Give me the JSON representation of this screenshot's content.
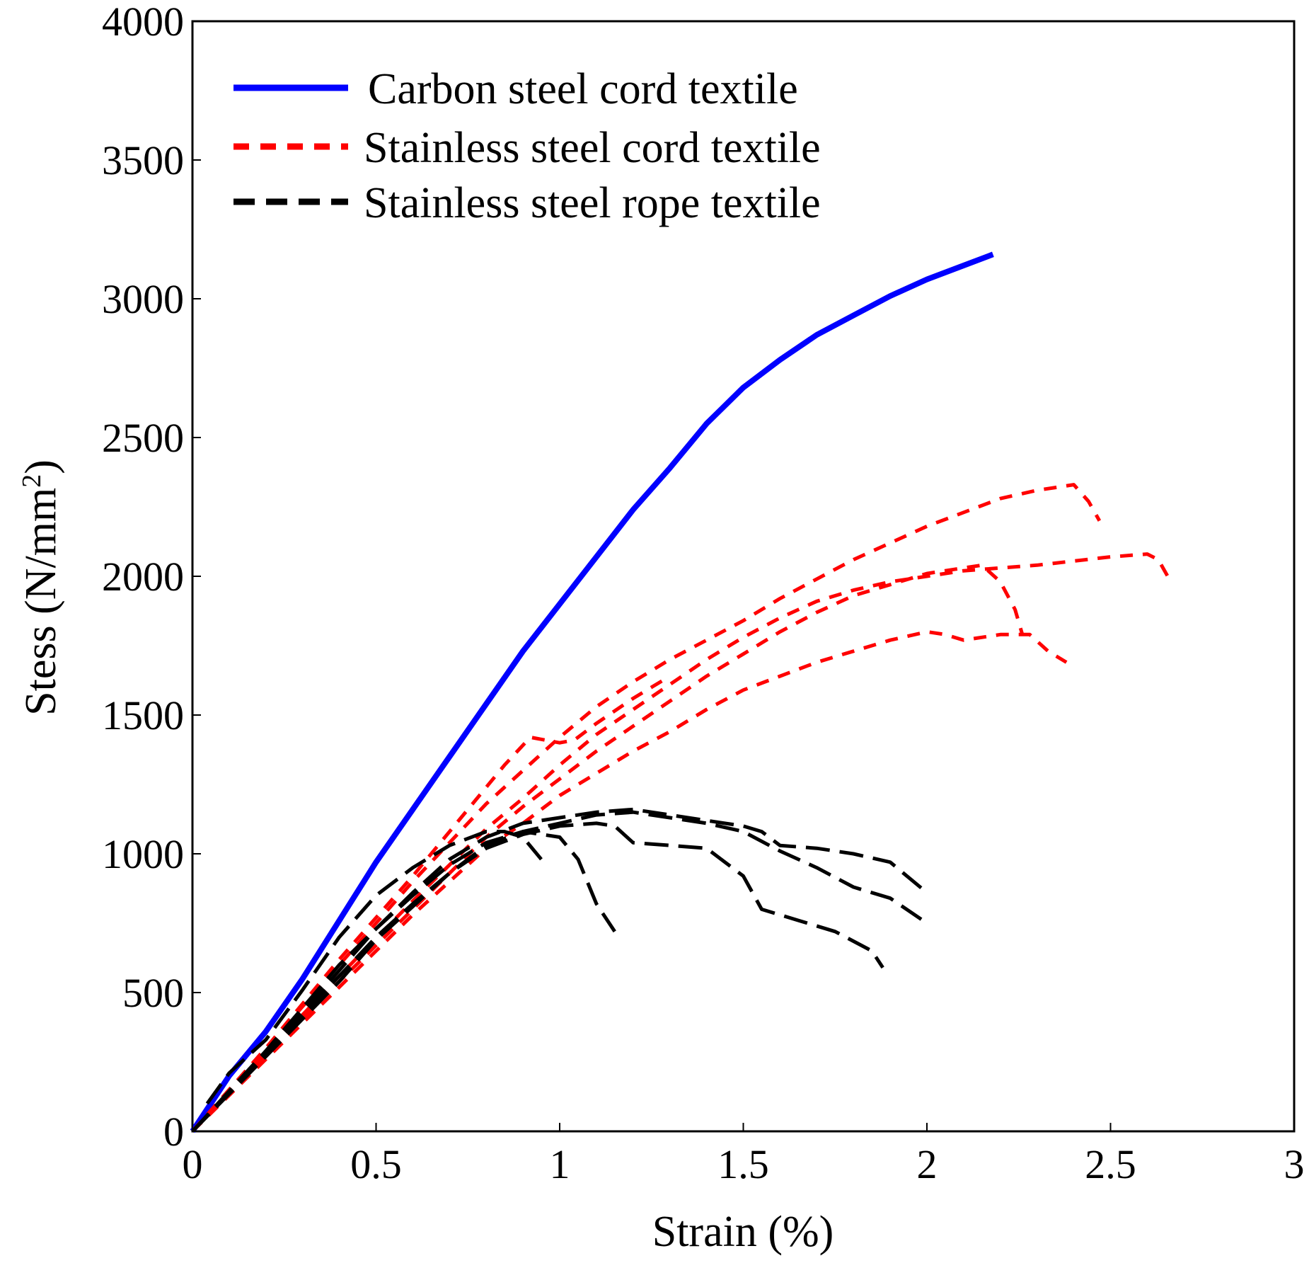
{
  "chart_data": {
    "type": "line",
    "title": "",
    "xlabel": "Strain (%)",
    "ylabel_main": "Stess (N/mm",
    "ylabel_sup": "2",
    "ylabel_close": ")",
    "xlim": [
      0,
      3
    ],
    "ylim": [
      0,
      4000
    ],
    "xticks": [
      0,
      0.5,
      1,
      1.5,
      2,
      2.5,
      3
    ],
    "xtick_labels": [
      "0",
      "0.5",
      "1",
      "1.5",
      "2",
      "2.5",
      "3"
    ],
    "yticks": [
      0,
      500,
      1000,
      1500,
      2000,
      2500,
      3000,
      3500,
      4000
    ],
    "ytick_labels": [
      "0",
      "500",
      "1000",
      "1500",
      "2000",
      "2500",
      "3000",
      "3500",
      "4000"
    ],
    "grid": false,
    "legend_position": "top-left",
    "legend": [
      {
        "label": "Carbon steel cord textile",
        "color": "#0000ff",
        "style": "solid"
      },
      {
        "label": "Stainless steel cord textile",
        "color": "#ff0000",
        "style": "short-dash"
      },
      {
        "label": "Stainless steel rope textile",
        "color": "#000000",
        "style": "dash"
      }
    ],
    "series": [
      {
        "name": "Carbon steel cord textile",
        "group": "carbon",
        "color": "#0000ff",
        "style": "solid",
        "points": [
          [
            0,
            0
          ],
          [
            0.1,
            200
          ],
          [
            0.2,
            360
          ],
          [
            0.3,
            550
          ],
          [
            0.4,
            760
          ],
          [
            0.5,
            970
          ],
          [
            0.6,
            1160
          ],
          [
            0.7,
            1350
          ],
          [
            0.8,
            1540
          ],
          [
            0.9,
            1730
          ],
          [
            1.0,
            1900
          ],
          [
            1.1,
            2070
          ],
          [
            1.2,
            2240
          ],
          [
            1.3,
            2390
          ],
          [
            1.4,
            2550
          ],
          [
            1.5,
            2680
          ],
          [
            1.6,
            2780
          ],
          [
            1.7,
            2870
          ],
          [
            1.8,
            2940
          ],
          [
            1.9,
            3010
          ],
          [
            2.0,
            3070
          ],
          [
            2.1,
            3120
          ],
          [
            2.18,
            3160
          ]
        ]
      },
      {
        "name": "Stainless steel cord textile 1",
        "group": "stainless-cord",
        "color": "#ff0000",
        "style": "short-dash",
        "points": [
          [
            0,
            0
          ],
          [
            0.2,
            300
          ],
          [
            0.4,
            600
          ],
          [
            0.6,
            900
          ],
          [
            0.8,
            1180
          ],
          [
            0.9,
            1300
          ],
          [
            1.0,
            1420
          ],
          [
            1.1,
            1530
          ],
          [
            1.2,
            1620
          ],
          [
            1.3,
            1700
          ],
          [
            1.4,
            1770
          ],
          [
            1.5,
            1840
          ],
          [
            1.6,
            1920
          ],
          [
            1.7,
            1990
          ],
          [
            1.8,
            2060
          ],
          [
            1.9,
            2120
          ],
          [
            2.0,
            2180
          ],
          [
            2.1,
            2230
          ],
          [
            2.2,
            2280
          ],
          [
            2.3,
            2310
          ],
          [
            2.35,
            2320
          ],
          [
            2.4,
            2330
          ],
          [
            2.44,
            2270
          ],
          [
            2.47,
            2200
          ]
        ]
      },
      {
        "name": "Stainless steel cord textile 2",
        "group": "stainless-cord",
        "color": "#ff0000",
        "style": "short-dash",
        "points": [
          [
            0,
            0
          ],
          [
            0.2,
            280
          ],
          [
            0.4,
            560
          ],
          [
            0.6,
            830
          ],
          [
            0.8,
            1090
          ],
          [
            0.9,
            1200
          ],
          [
            1.0,
            1320
          ],
          [
            1.1,
            1430
          ],
          [
            1.2,
            1520
          ],
          [
            1.3,
            1610
          ],
          [
            1.4,
            1700
          ],
          [
            1.5,
            1780
          ],
          [
            1.6,
            1850
          ],
          [
            1.7,
            1910
          ],
          [
            1.8,
            1950
          ],
          [
            1.9,
            1980
          ],
          [
            2.0,
            2000
          ],
          [
            2.1,
            2020
          ],
          [
            2.3,
            2040
          ],
          [
            2.5,
            2070
          ],
          [
            2.6,
            2080
          ],
          [
            2.63,
            2060
          ],
          [
            2.66,
            1990
          ]
        ]
      },
      {
        "name": "Stainless steel cord textile 3",
        "group": "stainless-cord",
        "color": "#ff0000",
        "style": "short-dash",
        "points": [
          [
            0,
            0
          ],
          [
            0.2,
            270
          ],
          [
            0.4,
            540
          ],
          [
            0.6,
            800
          ],
          [
            0.8,
            1060
          ],
          [
            0.9,
            1170
          ],
          [
            1.0,
            1270
          ],
          [
            1.1,
            1370
          ],
          [
            1.2,
            1460
          ],
          [
            1.3,
            1550
          ],
          [
            1.4,
            1640
          ],
          [
            1.5,
            1720
          ],
          [
            1.6,
            1800
          ],
          [
            1.7,
            1870
          ],
          [
            1.8,
            1930
          ],
          [
            1.9,
            1970
          ],
          [
            2.0,
            2010
          ],
          [
            2.1,
            2030
          ],
          [
            2.15,
            2040
          ],
          [
            2.2,
            1980
          ],
          [
            2.24,
            1880
          ],
          [
            2.26,
            1790
          ]
        ]
      },
      {
        "name": "Stainless steel cord textile 4",
        "group": "stainless-cord",
        "color": "#ff0000",
        "style": "short-dash",
        "points": [
          [
            0,
            0
          ],
          [
            0.2,
            260
          ],
          [
            0.4,
            520
          ],
          [
            0.6,
            780
          ],
          [
            0.8,
            1020
          ],
          [
            0.9,
            1110
          ],
          [
            1.0,
            1210
          ],
          [
            1.1,
            1290
          ],
          [
            1.2,
            1370
          ],
          [
            1.3,
            1440
          ],
          [
            1.4,
            1520
          ],
          [
            1.5,
            1590
          ],
          [
            1.6,
            1640
          ],
          [
            1.7,
            1690
          ],
          [
            1.8,
            1730
          ],
          [
            1.9,
            1770
          ],
          [
            2.0,
            1800
          ],
          [
            2.05,
            1790
          ],
          [
            2.1,
            1770
          ],
          [
            2.2,
            1790
          ],
          [
            2.28,
            1790
          ],
          [
            2.33,
            1730
          ],
          [
            2.38,
            1690
          ]
        ]
      },
      {
        "name": "Stainless steel cord textile 5",
        "group": "stainless-cord",
        "color": "#ff0000",
        "style": "short-dash",
        "points": [
          [
            0,
            0
          ],
          [
            0.2,
            300
          ],
          [
            0.4,
            620
          ],
          [
            0.6,
            920
          ],
          [
            0.75,
            1160
          ],
          [
            0.85,
            1320
          ],
          [
            0.92,
            1420
          ],
          [
            1.0,
            1400
          ],
          [
            1.04,
            1410
          ],
          [
            1.1,
            1470
          ],
          [
            1.2,
            1560
          ],
          [
            1.3,
            1640
          ]
        ]
      },
      {
        "name": "Stainless steel rope textile 1",
        "group": "stainless-rope",
        "color": "#000000",
        "style": "dash",
        "points": [
          [
            0.04,
            100
          ],
          [
            0.1,
            210
          ],
          [
            0.2,
            330
          ],
          [
            0.3,
            510
          ],
          [
            0.4,
            700
          ],
          [
            0.5,
            850
          ],
          [
            0.6,
            950
          ],
          [
            0.7,
            1030
          ],
          [
            0.8,
            1080
          ],
          [
            0.85,
            1080
          ],
          [
            0.9,
            1060
          ],
          [
            0.95,
            980
          ]
        ]
      },
      {
        "name": "Stainless steel rope textile 2",
        "group": "stainless-rope",
        "color": "#000000",
        "style": "dash",
        "points": [
          [
            0,
            0
          ],
          [
            0.2,
            290
          ],
          [
            0.4,
            600
          ],
          [
            0.5,
            730
          ],
          [
            0.6,
            850
          ],
          [
            0.7,
            960
          ],
          [
            0.8,
            1040
          ],
          [
            0.9,
            1080
          ],
          [
            1.0,
            1060
          ],
          [
            1.05,
            980
          ],
          [
            1.1,
            820
          ],
          [
            1.15,
            720
          ]
        ]
      },
      {
        "name": "Stainless steel rope textile 3",
        "group": "stainless-rope",
        "color": "#000000",
        "style": "dash",
        "points": [
          [
            0,
            0
          ],
          [
            0.2,
            280
          ],
          [
            0.4,
            560
          ],
          [
            0.5,
            700
          ],
          [
            0.6,
            820
          ],
          [
            0.7,
            930
          ],
          [
            0.8,
            1020
          ],
          [
            0.9,
            1070
          ],
          [
            1.0,
            1100
          ],
          [
            1.1,
            1110
          ],
          [
            1.15,
            1100
          ],
          [
            1.2,
            1040
          ],
          [
            1.3,
            1030
          ],
          [
            1.4,
            1020
          ],
          [
            1.5,
            920
          ],
          [
            1.55,
            800
          ],
          [
            1.65,
            760
          ],
          [
            1.75,
            720
          ],
          [
            1.85,
            650
          ],
          [
            1.88,
            590
          ]
        ]
      },
      {
        "name": "Stainless steel rope textile 4",
        "group": "stainless-rope",
        "color": "#000000",
        "style": "dash",
        "points": [
          [
            0,
            0
          ],
          [
            0.2,
            270
          ],
          [
            0.4,
            540
          ],
          [
            0.5,
            690
          ],
          [
            0.6,
            810
          ],
          [
            0.7,
            930
          ],
          [
            0.8,
            1030
          ],
          [
            0.9,
            1080
          ],
          [
            1.0,
            1110
          ],
          [
            1.1,
            1140
          ],
          [
            1.2,
            1150
          ],
          [
            1.3,
            1130
          ],
          [
            1.4,
            1110
          ],
          [
            1.5,
            1080
          ],
          [
            1.6,
            1010
          ],
          [
            1.7,
            950
          ],
          [
            1.8,
            880
          ],
          [
            1.9,
            840
          ],
          [
            2.0,
            750
          ]
        ]
      },
      {
        "name": "Stainless steel rope textile 5",
        "group": "stainless-rope",
        "color": "#000000",
        "style": "dash",
        "points": [
          [
            0,
            0
          ],
          [
            0.2,
            280
          ],
          [
            0.4,
            580
          ],
          [
            0.5,
            730
          ],
          [
            0.6,
            860
          ],
          [
            0.7,
            980
          ],
          [
            0.8,
            1060
          ],
          [
            0.9,
            1110
          ],
          [
            1.0,
            1130
          ],
          [
            1.1,
            1150
          ],
          [
            1.2,
            1160
          ],
          [
            1.3,
            1140
          ],
          [
            1.4,
            1120
          ],
          [
            1.5,
            1100
          ],
          [
            1.55,
            1080
          ],
          [
            1.6,
            1030
          ],
          [
            1.7,
            1020
          ],
          [
            1.8,
            1000
          ],
          [
            1.9,
            970
          ],
          [
            2.0,
            860
          ]
        ]
      }
    ]
  }
}
